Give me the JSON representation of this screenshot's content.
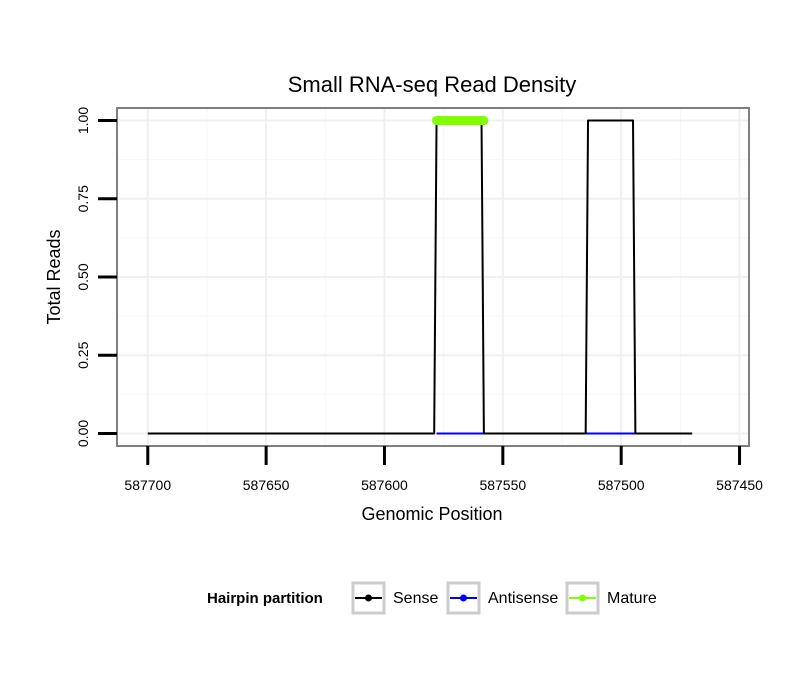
{
  "chart_data": {
    "type": "line",
    "title": "Small RNA-seq Read Density",
    "xlabel": "Genomic Position",
    "ylabel": "Total Reads",
    "x_reversed": true,
    "xlim": [
      587713,
      587446
    ],
    "ylim": [
      -0.04,
      1.04
    ],
    "grid": true,
    "x_ticks": [
      587700,
      587650,
      587600,
      587550,
      587500,
      587450
    ],
    "x_tick_labels": [
      "587700",
      "587650",
      "587600",
      "587550",
      "587500",
      "587450"
    ],
    "y_ticks": [
      0,
      0.25,
      0.5,
      0.75,
      1
    ],
    "y_tick_labels": [
      "0.00",
      "0.25",
      "0.50",
      "0.75",
      "1.00"
    ],
    "legend": {
      "title": "Hairpin partition",
      "position": "bottom",
      "entries": [
        {
          "label": "Sense",
          "color": "#000000"
        },
        {
          "label": "Antisense",
          "color": "#0000ff"
        },
        {
          "label": "Mature",
          "color": "#7fff00"
        }
      ]
    },
    "series": [
      {
        "name": "Sense",
        "color": "#000000",
        "x": [
          587700,
          587579,
          587578,
          587559,
          587558,
          587515,
          587514,
          587495,
          587494,
          587470
        ],
        "y": [
          0,
          0,
          1,
          1,
          0,
          0,
          1,
          1,
          0,
          0
        ]
      },
      {
        "name": "Antisense",
        "color": "#0000ff",
        "x": [
          587578,
          587558,
          587515,
          587494
        ],
        "y": [
          0,
          0,
          0,
          0
        ],
        "segments": [
          [
            587578,
            587558
          ],
          [
            587515,
            587494
          ]
        ]
      },
      {
        "name": "Mature",
        "color": "#7fff00",
        "x": [
          587578,
          587558
        ],
        "y": [
          1,
          1
        ]
      }
    ]
  }
}
